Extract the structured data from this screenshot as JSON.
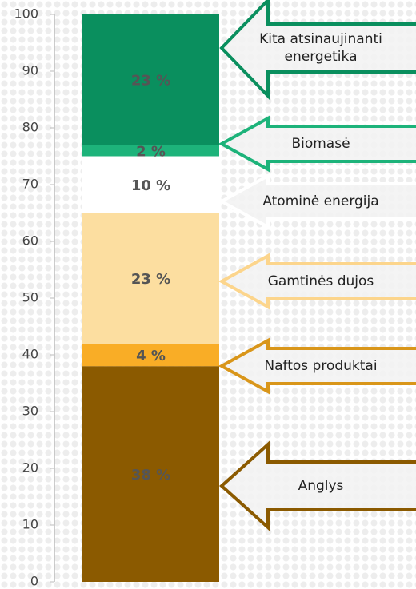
{
  "chart_data": {
    "type": "stacked_bar",
    "categories": [
      null
    ],
    "series": [
      {
        "name": "Anglys",
        "color": "#8b5a00",
        "values": [
          38
        ],
        "value_labels": [
          "38 %"
        ]
      },
      {
        "name": "Naftos produktai",
        "color": "#f9ad26",
        "values": [
          4
        ],
        "value_labels": [
          "4 %"
        ]
      },
      {
        "name": "Gamtinės dujos",
        "color": "#fcdea0",
        "values": [
          23
        ],
        "value_labels": [
          "23 %"
        ]
      },
      {
        "name": "Atominė energija",
        "color": "#ffffff",
        "values": [
          10
        ],
        "value_labels": [
          "10 %"
        ]
      },
      {
        "name": "Biomasė",
        "color": "#1db37a",
        "values": [
          2
        ],
        "value_labels": [
          "2 %"
        ]
      },
      {
        "name": "Kita atsinaujinanti energetika",
        "color": "#0a8f5e",
        "values": [
          23
        ],
        "value_labels": [
          "23 %"
        ]
      }
    ],
    "ylim": [
      0,
      100
    ],
    "yticks": [
      0,
      10,
      20,
      30,
      40,
      50,
      60,
      70,
      80,
      90,
      100
    ]
  }
}
